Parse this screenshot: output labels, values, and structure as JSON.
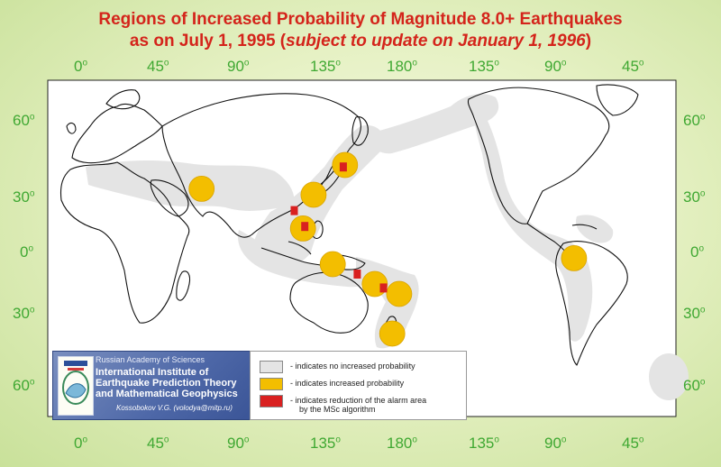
{
  "title": {
    "line1": "Regions of Increased Probability of Magnitude 8.0+ Earthquakes",
    "line2_prefix": "as on July 1, 1995 (",
    "line2_emphasis": "subject to update on January 1, 1996",
    "line2_suffix": ")"
  },
  "axes": {
    "degree_sign": "o",
    "longitude_ticks": [
      "0",
      "45",
      "90",
      "135",
      "180",
      "135",
      "90",
      "45"
    ],
    "latitude_ticks": [
      "60",
      "30",
      "0",
      "30",
      "60"
    ]
  },
  "colors": {
    "title": "#d4241b",
    "axis_labels": "#3fa832",
    "no_increase": "#e4e4e4",
    "increased": "#f3be00",
    "reduction": "#d92020",
    "coastline": "#111111"
  },
  "zones": {
    "increased_probability": [
      {
        "region": "Himalaya",
        "lon": 68,
        "lat": 33
      },
      {
        "region": "Kuril Islands / Hokkaido",
        "lon": 150,
        "lat": 45
      },
      {
        "region": "Japan / Ryukyu",
        "lon": 132,
        "lat": 30
      },
      {
        "region": "Philippines",
        "lon": 126,
        "lat": 13
      },
      {
        "region": "New Guinea",
        "lon": 143,
        "lat": -5
      },
      {
        "region": "Vanuatu",
        "lon": 167,
        "lat": -15
      },
      {
        "region": "Fiji / Tonga",
        "lon": 181,
        "lat": -20
      },
      {
        "region": "New Zealand",
        "lon": 177,
        "lat": -40
      },
      {
        "region": "Ecuador / Peru",
        "lon": -79,
        "lat": -2
      }
    ],
    "alarm_reduction": [
      {
        "region": "Kuril Islands",
        "lon": 149,
        "lat": 44
      },
      {
        "region": "Taiwan",
        "lon": 121,
        "lat": 22
      },
      {
        "region": "Philippines",
        "lon": 127,
        "lat": 14
      },
      {
        "region": "Solomon Islands",
        "lon": 157,
        "lat": -10
      },
      {
        "region": "Vanuatu / Fiji",
        "lon": 172,
        "lat": -17
      }
    ]
  },
  "institute": {
    "academy": "Russian Academy of Sciences",
    "name_line1": "International Institute of",
    "name_line2": "Earthquake Prediction Theory",
    "name_line3": "and Mathematical Geophysics",
    "author": "Kossobokov V.G. (volodya@mitp.ru)"
  },
  "legend": {
    "no_increase": "- indicates no increased probability",
    "increased": "- indicates increased probability",
    "reduction_line1": "- indicates reduction of the alarm area",
    "reduction_line2": "by the MSc algorithm"
  }
}
